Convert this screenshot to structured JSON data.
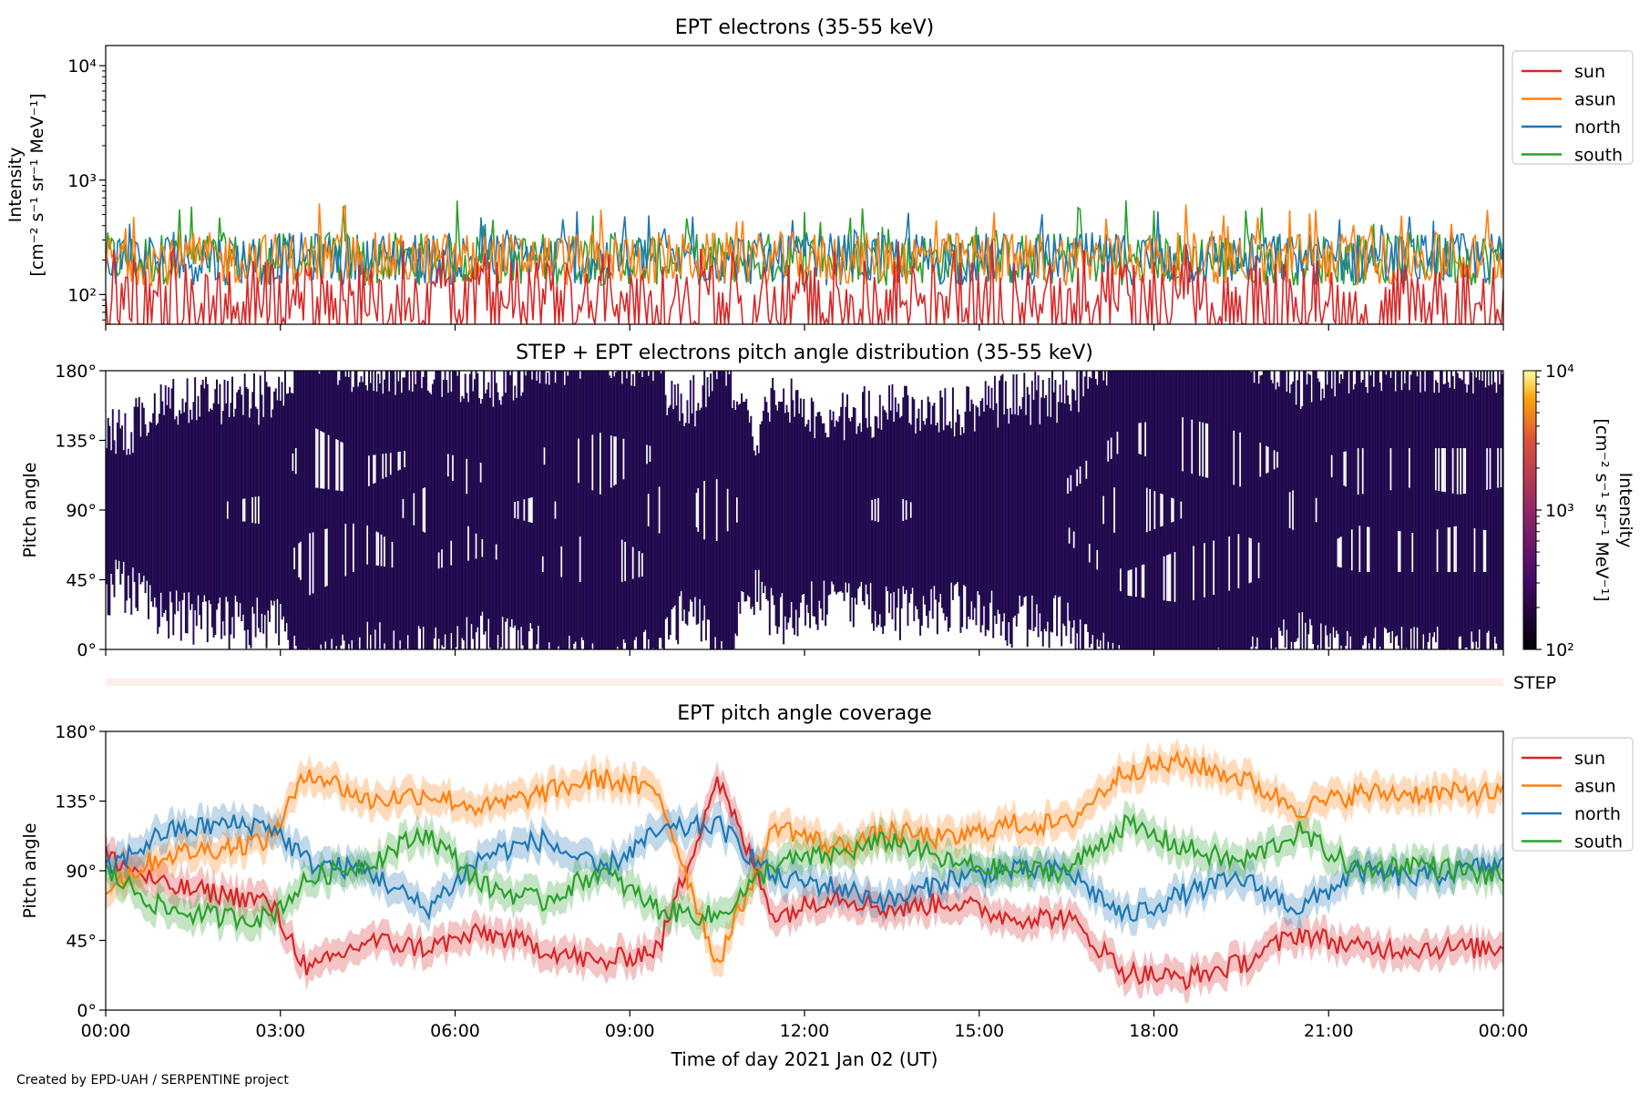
{
  "footer": {
    "credit": "Created by EPD-UAH / SERPENTINE project"
  },
  "colors": {
    "sun": "#d62728",
    "asun": "#ff7f0e",
    "north": "#1f77b4",
    "south": "#2ca02c",
    "pad_base": "#2a0a5e",
    "step_band": "#fdeee8"
  },
  "x_axis": {
    "label": "Time of day 2021 Jan 02 (UT)",
    "range_hours": [
      0,
      24
    ],
    "ticks": [
      0,
      3,
      6,
      9,
      12,
      15,
      18,
      21,
      24
    ],
    "tick_labels": [
      "00:00",
      "03:00",
      "06:00",
      "09:00",
      "12:00",
      "15:00",
      "18:00",
      "21:00",
      "00:00"
    ]
  },
  "chart_data": [
    {
      "type": "line",
      "title": "EPT electrons (35-55 keV)",
      "ylabel": [
        "Intensity",
        "[cm⁻² s⁻¹ sr⁻¹ MeV⁻¹]"
      ],
      "yscale": "log",
      "ylim": [
        55,
        15000
      ],
      "yticks": [
        100,
        1000,
        10000
      ],
      "ytick_labels": [
        "10²",
        "10³",
        "10⁴"
      ],
      "legend": "upper-right-outside",
      "series": [
        {
          "name": "sun",
          "color": "#d62728",
          "typical_range": [
            55,
            200
          ],
          "max": 300
        },
        {
          "name": "asun",
          "color": "#ff7f0e",
          "typical_range": [
            120,
            350
          ],
          "max": 650
        },
        {
          "name": "north",
          "color": "#1f77b4",
          "typical_range": [
            120,
            350
          ],
          "max": 560
        },
        {
          "name": "south",
          "color": "#2ca02c",
          "typical_range": [
            120,
            350
          ],
          "max": 720
        }
      ]
    },
    {
      "type": "heatmap",
      "title": "STEP + EPT electrons pitch angle distribution (35-55 keV)",
      "ylabel": "Pitch angle",
      "ylim": [
        0,
        180
      ],
      "yticks": [
        0,
        45,
        90,
        135,
        180
      ],
      "ytick_labels": [
        "0°",
        "45°",
        "90°",
        "135°",
        "180°"
      ],
      "colorbar": {
        "label": "Intensity",
        "unit": "[cm⁻² s⁻¹ sr⁻¹ MeV⁻¹]",
        "scale": "log",
        "range": [
          100,
          10000
        ],
        "tick_labels": [
          "10²",
          "10³",
          "10⁴"
        ]
      },
      "typical_intensity": 150
    },
    {
      "type": "heatmap",
      "title": "",
      "label": "STEP",
      "values": "no coverage shown"
    },
    {
      "type": "line",
      "title": "EPT pitch angle coverage",
      "ylabel": "Pitch angle",
      "ylim": [
        0,
        180
      ],
      "yticks": [
        0,
        45,
        90,
        135,
        180
      ],
      "ytick_labels": [
        "0°",
        "45°",
        "90°",
        "135°",
        "180°"
      ],
      "legend": "upper-right-outside",
      "x": [
        0,
        1,
        2,
        2.8,
        3.5,
        4.5,
        5.5,
        6.5,
        7.5,
        8.5,
        9.5,
        10.5,
        11.5,
        12.5,
        13.5,
        14.5,
        15.5,
        16.5,
        17.5,
        18.5,
        19.5,
        20.5,
        21.5,
        22.5,
        24
      ],
      "series": [
        {
          "name": "sun",
          "color": "#d62728",
          "band_halfwidth_deg": 10,
          "values": [
            100,
            80,
            75,
            70,
            25,
            45,
            40,
            50,
            40,
            30,
            40,
            150,
            60,
            75,
            65,
            70,
            60,
            60,
            25,
            20,
            30,
            50,
            40,
            40,
            40
          ]
        },
        {
          "name": "asun",
          "color": "#ff7f0e",
          "band_halfwidth_deg": 10,
          "values": [
            80,
            100,
            105,
            110,
            155,
            135,
            140,
            130,
            140,
            150,
            140,
            30,
            120,
            105,
            115,
            110,
            120,
            120,
            155,
            160,
            150,
            130,
            140,
            140,
            140
          ]
        },
        {
          "name": "north",
          "color": "#1f77b4",
          "band_halfwidth_deg": 10,
          "values": [
            90,
            115,
            120,
            120,
            95,
            90,
            65,
            100,
            110,
            90,
            115,
            120,
            85,
            80,
            70,
            85,
            90,
            90,
            60,
            75,
            85,
            65,
            90,
            85,
            95
          ]
        },
        {
          "name": "south",
          "color": "#2ca02c",
          "band_halfwidth_deg": 10,
          "values": [
            90,
            65,
            60,
            60,
            85,
            95,
            115,
            80,
            70,
            90,
            65,
            60,
            95,
            100,
            110,
            95,
            90,
            90,
            120,
            105,
            95,
            115,
            90,
            95,
            85
          ]
        }
      ]
    }
  ]
}
